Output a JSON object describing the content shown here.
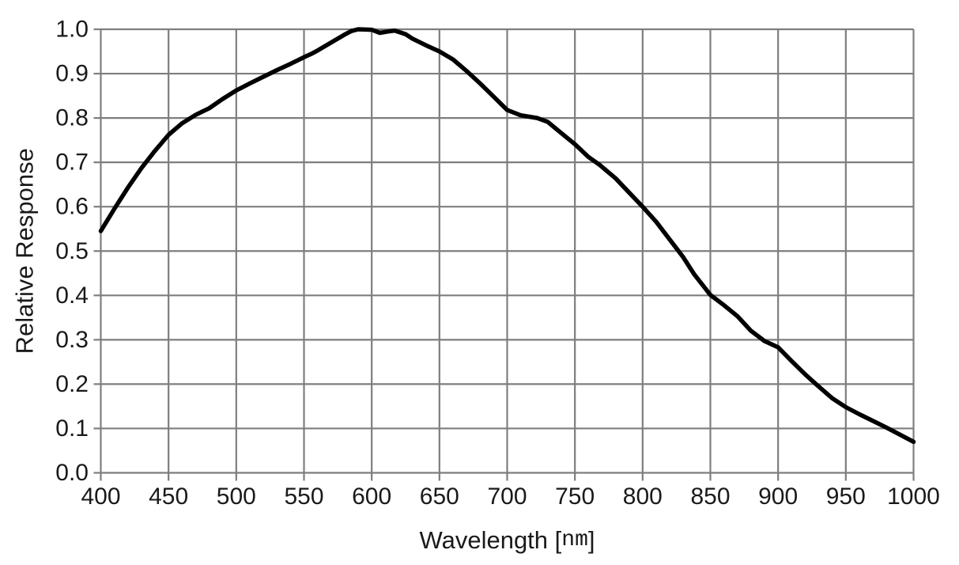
{
  "figure": {
    "background": "#ffffff"
  },
  "chart_data": {
    "type": "line",
    "title": "",
    "xlabel": "Wavelength [nm]",
    "ylabel": "Relative Response",
    "xlim": [
      400,
      1000
    ],
    "ylim": [
      0.0,
      1.0
    ],
    "grid": true,
    "legend": false,
    "x_ticks": [
      {
        "value": 400,
        "label": "400"
      },
      {
        "value": 450,
        "label": "450"
      },
      {
        "value": 500,
        "label": "500"
      },
      {
        "value": 550,
        "label": "550"
      },
      {
        "value": 600,
        "label": "600"
      },
      {
        "value": 650,
        "label": "650"
      },
      {
        "value": 700,
        "label": "700"
      },
      {
        "value": 750,
        "label": "750"
      },
      {
        "value": 800,
        "label": "800"
      },
      {
        "value": 850,
        "label": "850"
      },
      {
        "value": 900,
        "label": "900"
      },
      {
        "value": 950,
        "label": "950"
      },
      {
        "value": 1000,
        "label": "1000"
      }
    ],
    "y_ticks": [
      {
        "value": 0.0,
        "label": "0.0"
      },
      {
        "value": 0.1,
        "label": "0.1"
      },
      {
        "value": 0.2,
        "label": "0.2"
      },
      {
        "value": 0.3,
        "label": "0.3"
      },
      {
        "value": 0.4,
        "label": "0.4"
      },
      {
        "value": 0.5,
        "label": "0.5"
      },
      {
        "value": 0.6,
        "label": "0.6"
      },
      {
        "value": 0.7,
        "label": "0.7"
      },
      {
        "value": 0.8,
        "label": "0.8"
      },
      {
        "value": 0.9,
        "label": "0.9"
      },
      {
        "value": 1.0,
        "label": "1.0"
      }
    ],
    "colors": {
      "curve": "#000000",
      "grid": "#7e7e7e",
      "text": "#1a1a1a"
    },
    "series": [
      {
        "name": "Relative Response",
        "points": [
          [
            400,
            0.545
          ],
          [
            410,
            0.595
          ],
          [
            420,
            0.643
          ],
          [
            430,
            0.687
          ],
          [
            440,
            0.726
          ],
          [
            450,
            0.762
          ],
          [
            460,
            0.788
          ],
          [
            470,
            0.807
          ],
          [
            480,
            0.822
          ],
          [
            490,
            0.843
          ],
          [
            500,
            0.862
          ],
          [
            510,
            0.878
          ],
          [
            520,
            0.893
          ],
          [
            530,
            0.908
          ],
          [
            540,
            0.922
          ],
          [
            550,
            0.937
          ],
          [
            555,
            0.944
          ],
          [
            560,
            0.952
          ],
          [
            570,
            0.97
          ],
          [
            580,
            0.988
          ],
          [
            585,
            0.996
          ],
          [
            590,
            1.0
          ],
          [
            600,
            0.999
          ],
          [
            606,
            0.992
          ],
          [
            612,
            0.995
          ],
          [
            617,
            0.997
          ],
          [
            625,
            0.989
          ],
          [
            630,
            0.979
          ],
          [
            640,
            0.964
          ],
          [
            650,
            0.95
          ],
          [
            660,
            0.932
          ],
          [
            670,
            0.906
          ],
          [
            680,
            0.878
          ],
          [
            690,
            0.848
          ],
          [
            700,
            0.818
          ],
          [
            710,
            0.806
          ],
          [
            722,
            0.8
          ],
          [
            730,
            0.791
          ],
          [
            740,
            0.766
          ],
          [
            750,
            0.741
          ],
          [
            760,
            0.712
          ],
          [
            768,
            0.695
          ],
          [
            780,
            0.664
          ],
          [
            790,
            0.632
          ],
          [
            800,
            0.6
          ],
          [
            810,
            0.566
          ],
          [
            820,
            0.526
          ],
          [
            830,
            0.486
          ],
          [
            838,
            0.448
          ],
          [
            850,
            0.401
          ],
          [
            860,
            0.378
          ],
          [
            870,
            0.353
          ],
          [
            880,
            0.32
          ],
          [
            890,
            0.297
          ],
          [
            900,
            0.283
          ],
          [
            910,
            0.252
          ],
          [
            920,
            0.222
          ],
          [
            928,
            0.2
          ],
          [
            940,
            0.168
          ],
          [
            950,
            0.148
          ],
          [
            960,
            0.132
          ],
          [
            970,
            0.117
          ],
          [
            980,
            0.102
          ],
          [
            990,
            0.086
          ],
          [
            1000,
            0.07
          ]
        ]
      }
    ]
  }
}
